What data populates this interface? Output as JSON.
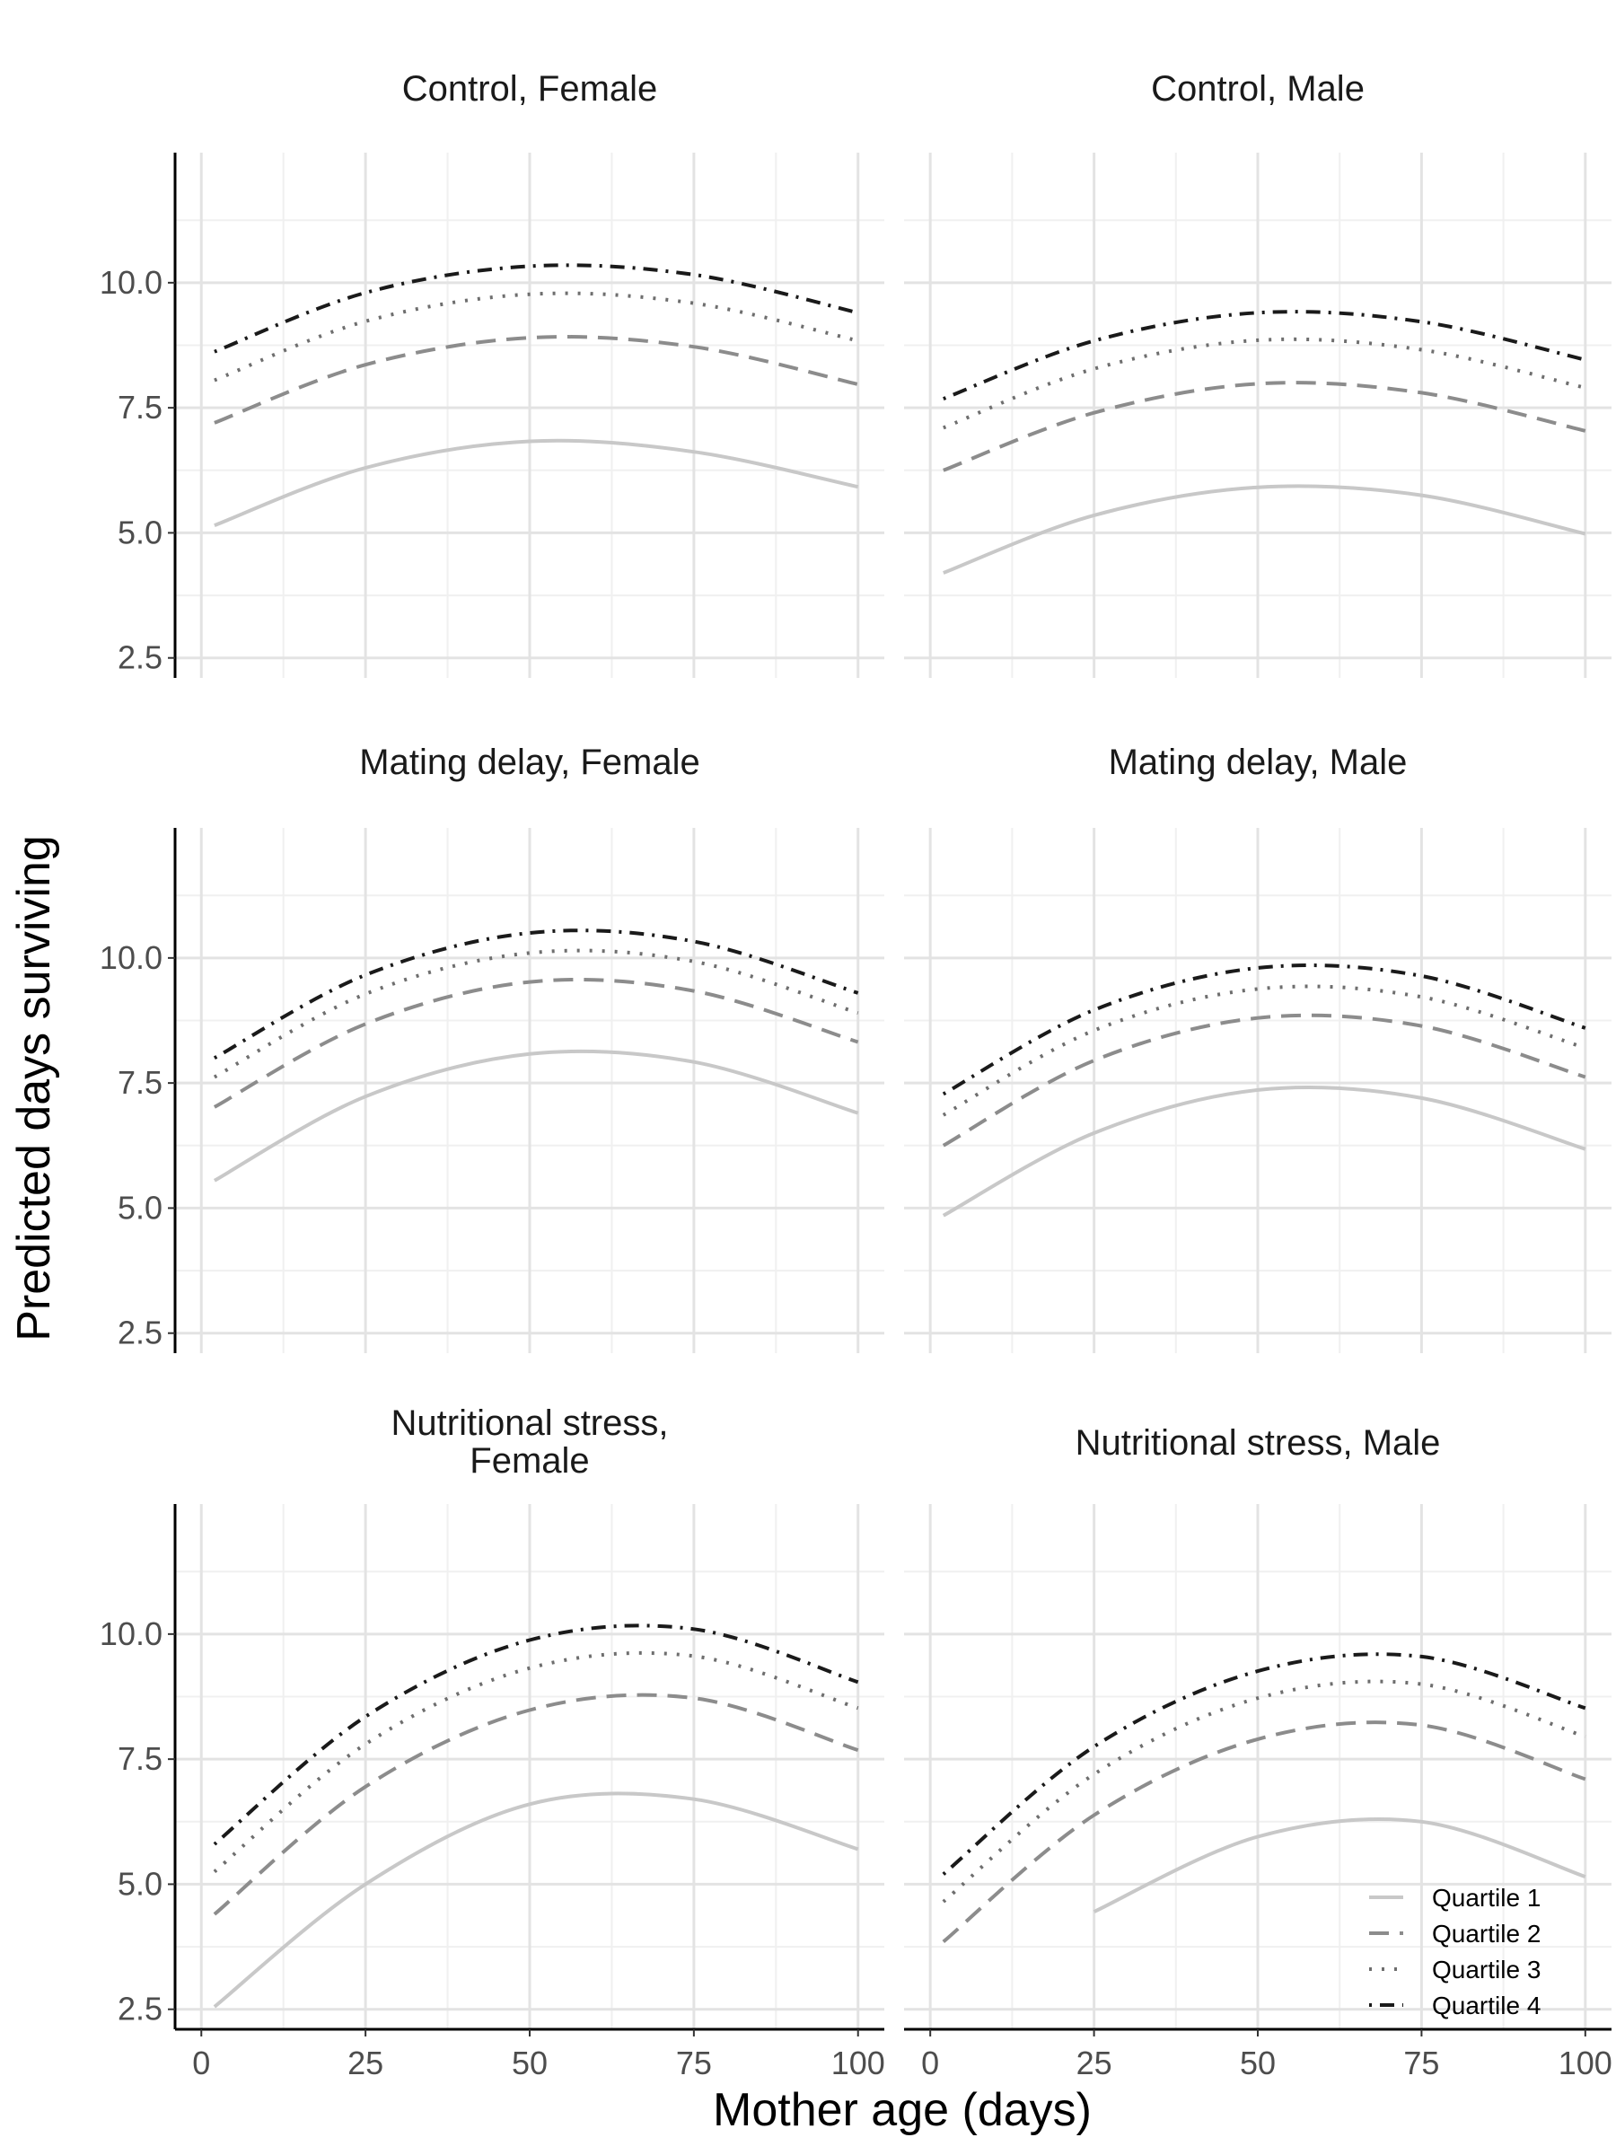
{
  "chart_data": {
    "type": "line",
    "xlabel": "Mother age (days)",
    "ylabel": "Predicted days surviving",
    "xlim": [
      -4,
      104
    ],
    "ylim": [
      2.1,
      12.6
    ],
    "x_ticks": [
      0,
      25,
      50,
      75,
      100
    ],
    "x_tick_labels": [
      "0",
      "25",
      "50",
      "75",
      "100"
    ],
    "y_ticks": [
      2.5,
      5.0,
      7.5,
      10.0
    ],
    "y_tick_labels": [
      "2.5",
      "5.0",
      "7.5",
      "10.0"
    ],
    "grid": true,
    "legend_position": "bottom-right of last panel",
    "series_styles": [
      {
        "name": "Quartile 1",
        "color": "#c8c8c8",
        "dash": "solid"
      },
      {
        "name": "Quartile 2",
        "color": "#8c8c8c",
        "dash": "dashed"
      },
      {
        "name": "Quartile 3",
        "color": "#6e6e6e",
        "dash": "dotted"
      },
      {
        "name": "Quartile 4",
        "color": "#1a1a1a",
        "dash": "dotdash"
      }
    ],
    "x": [
      2,
      25,
      50,
      75,
      100
    ],
    "panels": [
      {
        "title": [
          "Control, Female"
        ],
        "series": [
          {
            "name": "Quartile 1",
            "values": [
              5.15,
              6.3,
              6.83,
              6.62,
              5.92
            ]
          },
          {
            "name": "Quartile 2",
            "values": [
              7.2,
              8.36,
              8.9,
              8.72,
              7.97
            ]
          },
          {
            "name": "Quartile 3",
            "values": [
              8.05,
              9.23,
              9.77,
              9.59,
              8.84
            ]
          },
          {
            "name": "Quartile 4",
            "values": [
              8.62,
              9.8,
              10.33,
              10.16,
              9.4
            ]
          }
        ]
      },
      {
        "title": [
          "Control, Male"
        ],
        "series": [
          {
            "name": "Quartile 1",
            "values": [
              4.2,
              5.35,
              5.91,
              5.75,
              4.98
            ]
          },
          {
            "name": "Quartile 2",
            "values": [
              6.25,
              7.4,
              7.98,
              7.8,
              7.04
            ]
          },
          {
            "name": "Quartile 3",
            "values": [
              7.1,
              8.28,
              8.85,
              8.66,
              7.9
            ]
          },
          {
            "name": "Quartile 4",
            "values": [
              7.68,
              8.84,
              9.4,
              9.22,
              8.46
            ]
          }
        ]
      },
      {
        "title": [
          "Mating delay, Female"
        ],
        "series": [
          {
            "name": "Quartile 1",
            "values": [
              5.55,
              7.23,
              8.08,
              7.92,
              6.9
            ]
          },
          {
            "name": "Quartile 2",
            "values": [
              7.02,
              8.68,
              9.52,
              9.34,
              8.32
            ]
          },
          {
            "name": "Quartile 3",
            "values": [
              7.62,
              9.28,
              10.1,
              9.93,
              8.9
            ]
          },
          {
            "name": "Quartile 4",
            "values": [
              8.0,
              9.66,
              10.5,
              10.33,
              9.3
            ]
          }
        ]
      },
      {
        "title": [
          "Mating delay, Male"
        ],
        "series": [
          {
            "name": "Quartile 1",
            "values": [
              4.85,
              6.5,
              7.36,
              7.2,
              6.18
            ]
          },
          {
            "name": "Quartile 2",
            "values": [
              6.25,
              7.95,
              8.8,
              8.64,
              7.62
            ]
          },
          {
            "name": "Quartile 3",
            "values": [
              6.86,
              8.55,
              9.38,
              9.22,
              8.2
            ]
          },
          {
            "name": "Quartile 4",
            "values": [
              7.28,
              8.96,
              9.8,
              9.64,
              8.6
            ]
          }
        ]
      },
      {
        "title": [
          "Nutritional stress,",
          "Female"
        ],
        "series": [
          {
            "name": "Quartile 1",
            "values": [
              2.55,
              5.0,
              6.6,
              6.7,
              5.7
            ]
          },
          {
            "name": "Quartile 2",
            "values": [
              4.4,
              6.95,
              8.48,
              8.72,
              7.68
            ]
          },
          {
            "name": "Quartile 3",
            "values": [
              5.25,
              7.8,
              9.32,
              9.56,
              8.52
            ]
          },
          {
            "name": "Quartile 4",
            "values": [
              5.8,
              8.35,
              9.88,
              10.1,
              9.04
            ]
          }
        ]
      },
      {
        "title": [
          "Nutritional stress, Male"
        ],
        "series": [
          {
            "name": "Quartile 1",
            "values": [
              null,
              4.45,
              5.95,
              6.25,
              5.15
            ]
          },
          {
            "name": "Quartile 2",
            "values": [
              3.85,
              6.38,
              7.9,
              8.18,
              7.1
            ]
          },
          {
            "name": "Quartile 3",
            "values": [
              4.65,
              7.2,
              8.72,
              9.0,
              7.95
            ]
          },
          {
            "name": "Quartile 4",
            "values": [
              5.2,
              7.75,
              9.26,
              9.55,
              8.52
            ]
          }
        ]
      }
    ]
  }
}
